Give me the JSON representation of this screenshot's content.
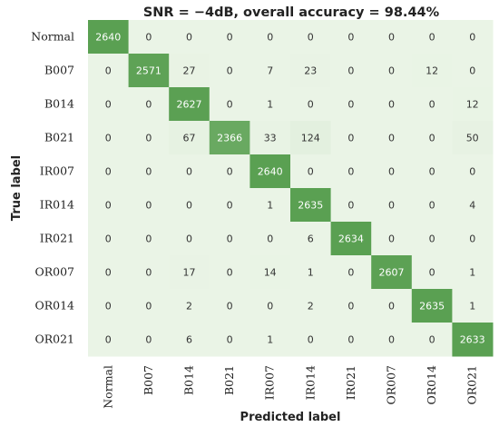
{
  "chart_data": {
    "type": "heatmap",
    "title": "SNR = −4dB, overall accuracy = 98.44%",
    "xlabel": "Predicted label",
    "ylabel": "True label",
    "row_labels": [
      "Normal",
      "B007",
      "B014",
      "B021",
      "IR007",
      "IR014",
      "IR021",
      "OR007",
      "OR014",
      "OR021"
    ],
    "col_labels": [
      "Normal",
      "B007",
      "B014",
      "B021",
      "IR007",
      "IR014",
      "IR021",
      "OR007",
      "OR014",
      "OR021"
    ],
    "values": [
      [
        2640,
        0,
        0,
        0,
        0,
        0,
        0,
        0,
        0,
        0
      ],
      [
        0,
        2571,
        27,
        0,
        7,
        23,
        0,
        0,
        12,
        0
      ],
      [
        0,
        0,
        2627,
        0,
        1,
        0,
        0,
        0,
        0,
        12
      ],
      [
        0,
        0,
        67,
        2366,
        33,
        124,
        0,
        0,
        0,
        50
      ],
      [
        0,
        0,
        0,
        0,
        2640,
        0,
        0,
        0,
        0,
        0
      ],
      [
        0,
        0,
        0,
        0,
        1,
        2635,
        0,
        0,
        0,
        4
      ],
      [
        0,
        0,
        0,
        0,
        0,
        6,
        2634,
        0,
        0,
        0
      ],
      [
        0,
        0,
        17,
        0,
        14,
        1,
        0,
        2607,
        0,
        1
      ],
      [
        0,
        0,
        2,
        0,
        0,
        2,
        0,
        0,
        2635,
        1
      ],
      [
        0,
        0,
        6,
        0,
        1,
        0,
        0,
        0,
        0,
        2633
      ]
    ],
    "colors": {
      "high": "#5aa052",
      "low": "#eaf4e6",
      "text_on_high": "#ffffff",
      "text_on_low": "#333333"
    },
    "grid": false
  }
}
